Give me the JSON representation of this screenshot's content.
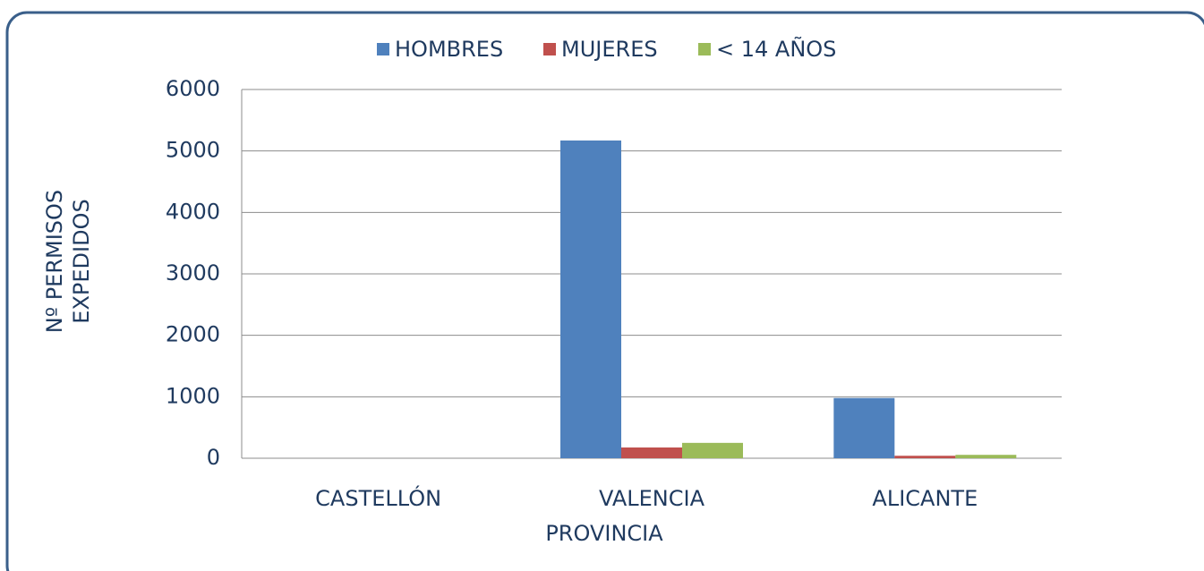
{
  "chart_data": {
    "type": "bar",
    "categories": [
      "CASTELLÓN",
      "VALENCIA",
      "ALICANTE"
    ],
    "series": [
      {
        "name": "HOMBRES",
        "color": "#4f81bd",
        "values": [
          0,
          5170,
          980
        ]
      },
      {
        "name": "MUJERES",
        "color": "#c0504d",
        "values": [
          0,
          175,
          40
        ]
      },
      {
        "name": "< 14 AÑOS",
        "color": "#9bbb59",
        "values": [
          0,
          250,
          55
        ]
      }
    ],
    "xlabel": "PROVINCIA",
    "ylabel": "Nº PERMISOS EXPEDIDOS",
    "ylim": [
      0,
      6000
    ],
    "yticks": [
      0,
      1000,
      2000,
      3000,
      4000,
      5000,
      6000
    ],
    "grid": true,
    "legend": "top"
  }
}
